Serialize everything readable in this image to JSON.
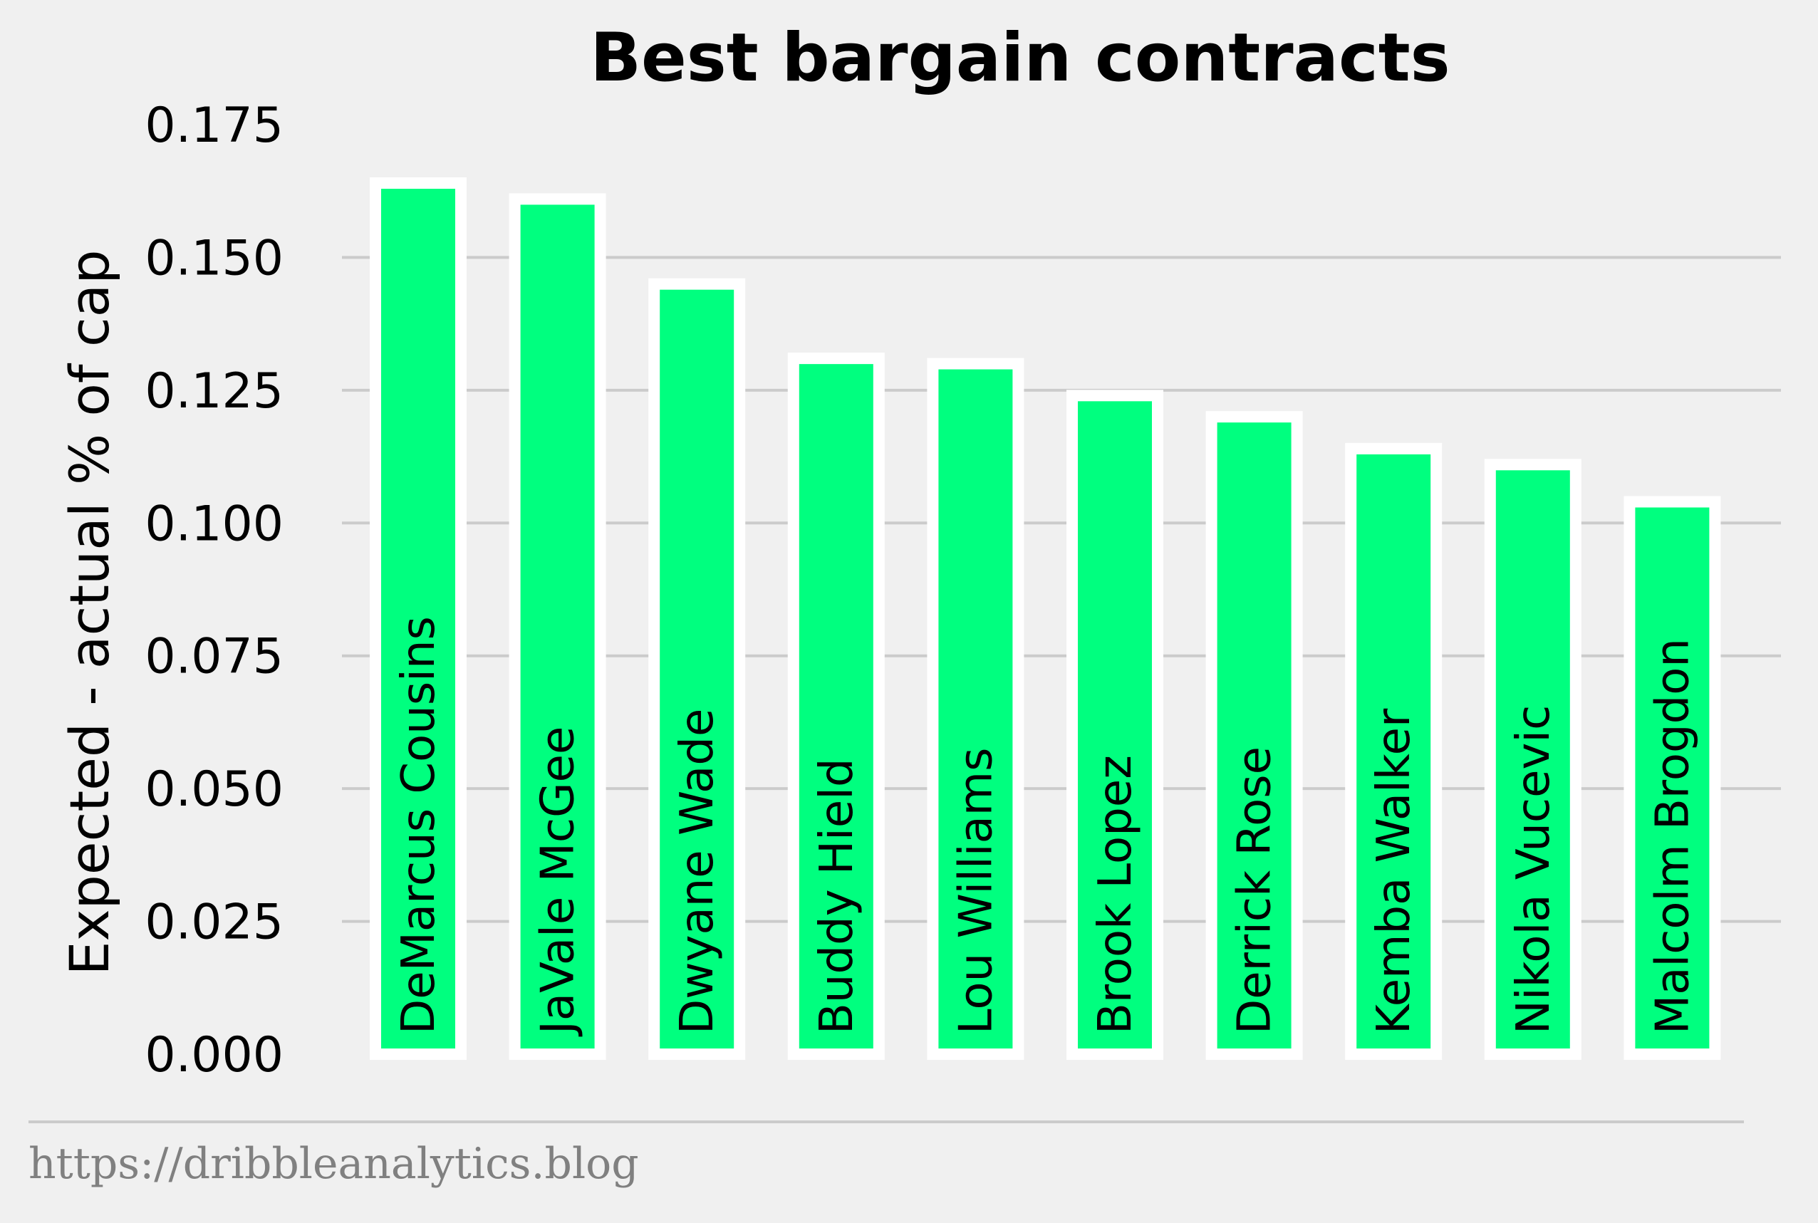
{
  "chart_data": {
    "type": "bar",
    "title": "Best bargain contracts",
    "xlabel": "",
    "ylabel": "Expected - actual % of cap",
    "ylim": [
      0,
      0.175
    ],
    "yticks": [
      "0.000",
      "0.025",
      "0.050",
      "0.075",
      "0.100",
      "0.125",
      "0.150",
      "0.175"
    ],
    "ytick_values": [
      0,
      0.025,
      0.05,
      0.075,
      0.1,
      0.125,
      0.15,
      0.175
    ],
    "grid": true,
    "categories": [
      "DeMarcus Cousins",
      "JaVale McGee",
      "Dwyane Wade",
      "Buddy Hield",
      "Lou Williams",
      "Brook Lopez",
      "Derrick Rose",
      "Kemba Walker",
      "Nikola Vucevic",
      "Malcolm Brogdon"
    ],
    "values": [
      0.164,
      0.161,
      0.145,
      0.131,
      0.13,
      0.124,
      0.12,
      0.114,
      0.111,
      0.104
    ],
    "bar_color": "#00ff7f",
    "bar_edge_color": "#ffffff",
    "background_color": "#f0f0f0",
    "grid_color": "#cbcbcb"
  },
  "footer": {
    "source": "https://dribbleanalytics.blog"
  }
}
